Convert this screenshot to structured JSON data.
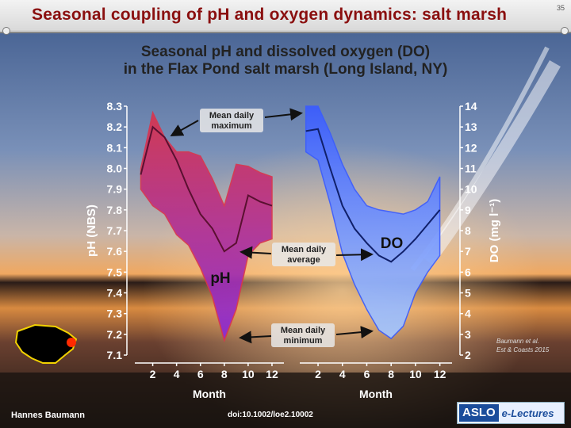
{
  "header": {
    "title": "Seasonal coupling of pH and oxygen dynamics: salt marsh",
    "slide_number": "35"
  },
  "subtitle": {
    "line1": "Seasonal pH and dissolved oxygen (DO)",
    "line2": "in the Flax Pond salt marsh (Long Island, NY)"
  },
  "footer": {
    "author": "Hannes Baumann",
    "doi": "doi:10.1002/loe2.10002",
    "logo_left": "ASLO",
    "logo_right": "e-Lectures"
  },
  "credit": {
    "line1": "Baumann et al.",
    "line2": "Est & Coasts 2015"
  },
  "annotations": {
    "max": [
      "Mean daily",
      "maximum"
    ],
    "avg": [
      "Mean daily",
      "average"
    ],
    "min": [
      "Mean daily",
      "minimum"
    ],
    "ph": "pH",
    "do": "DO"
  },
  "chart_data": [
    {
      "type": "area",
      "name": "pH",
      "xlabel": "Month",
      "ylabel": "pH (NBS)",
      "x_ticks": [
        2,
        4,
        6,
        8,
        10,
        12
      ],
      "y_ticks": [
        "8.3",
        "8.2",
        "8.1",
        "8.0",
        "7.9",
        "7.8",
        "7.7",
        "7.6",
        "7.5",
        "7.4",
        "7.3",
        "7.2",
        "7.1"
      ],
      "xlim": [
        0.5,
        13
      ],
      "ylim": [
        7.1,
        8.3
      ],
      "x": [
        1,
        2,
        3,
        4,
        5,
        6,
        7,
        8,
        9,
        10,
        11,
        12
      ],
      "max": [
        8.0,
        8.27,
        8.15,
        8.08,
        8.08,
        8.06,
        7.95,
        7.82,
        8.02,
        8.01,
        7.98,
        7.96
      ],
      "avg": [
        7.97,
        8.2,
        8.15,
        8.04,
        7.9,
        7.78,
        7.71,
        7.6,
        7.64,
        7.87,
        7.84,
        7.82
      ],
      "min": [
        7.9,
        7.82,
        7.78,
        7.68,
        7.63,
        7.52,
        7.38,
        7.17,
        7.32,
        7.58,
        7.64,
        7.66
      ],
      "colors": {
        "top": "#d9354d",
        "bottom": "#8a2ad8",
        "line": "#5a1030"
      }
    },
    {
      "type": "area",
      "name": "DO",
      "xlabel": "Month",
      "ylabel": "DO (mg l⁻¹)",
      "x_ticks": [
        2,
        4,
        6,
        8,
        10,
        12
      ],
      "y_ticks": [
        "14",
        "13",
        "12",
        "11",
        "10",
        "9",
        "8",
        "7",
        "6",
        "5",
        "4",
        "3",
        "2"
      ],
      "xlim": [
        0.5,
        13
      ],
      "ylim": [
        2,
        14
      ],
      "x": [
        1,
        2,
        3,
        4,
        5,
        6,
        7,
        8,
        9,
        10,
        11,
        12
      ],
      "max": [
        14.0,
        14.0,
        12.7,
        11.2,
        10.0,
        9.2,
        9.0,
        8.9,
        8.8,
        9.0,
        9.4,
        10.6
      ],
      "avg": [
        12.8,
        12.9,
        11.0,
        9.2,
        8.1,
        7.4,
        6.8,
        6.5,
        7.0,
        7.6,
        8.3,
        9.0
      ],
      "min": [
        11.8,
        11.4,
        9.3,
        6.9,
        5.4,
        4.2,
        3.2,
        2.8,
        3.4,
        5.0,
        6.0,
        6.8
      ],
      "colors": {
        "top": "#3a5cff",
        "bottom": "#a6c8ff",
        "line": "#10206a"
      }
    }
  ]
}
